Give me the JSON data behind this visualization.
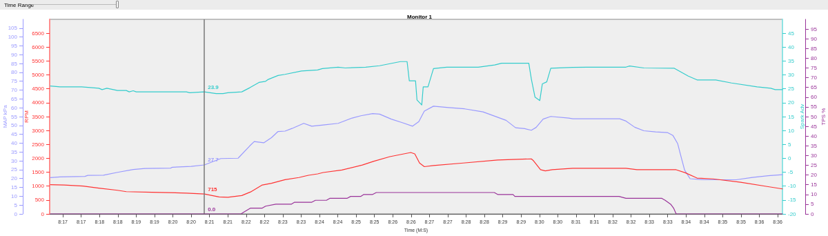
{
  "chart_data": [
    {
      "type": "line",
      "title": "Monitor 1",
      "xlabel": "Time (M:S)",
      "ylabel": "RPM",
      "y2label": "Spark Adv",
      "y3label": "MAP kPa",
      "annotations": [
        "Time Range"
      ],
      "xlim": [
        496.64,
        516.63
      ],
      "xticks": [
        {
          "value": 497,
          "label": "8:17"
        },
        {
          "value": 497.5,
          "label": "8:17"
        },
        {
          "value": 498,
          "label": "8:18"
        },
        {
          "value": 498.5,
          "label": "8:18"
        },
        {
          "value": 499,
          "label": "8:19"
        },
        {
          "value": 499.5,
          "label": "8:19"
        },
        {
          "value": 500,
          "label": "8:20"
        },
        {
          "value": 500.5,
          "label": "8:20"
        },
        {
          "value": 501,
          "label": "8:21"
        },
        {
          "value": 501.5,
          "label": "8:21"
        },
        {
          "value": 502,
          "label": "8:22"
        },
        {
          "value": 502.5,
          "label": "8:22"
        },
        {
          "value": 503,
          "label": "8:23"
        },
        {
          "value": 503.5,
          "label": "8:23"
        },
        {
          "value": 504,
          "label": "8:24"
        },
        {
          "value": 504.5,
          "label": "8:24"
        },
        {
          "value": 505,
          "label": "8:25"
        },
        {
          "value": 505.5,
          "label": "8:25"
        },
        {
          "value": 506,
          "label": "8:26"
        },
        {
          "value": 506.5,
          "label": "8:26"
        },
        {
          "value": 507,
          "label": "8:27"
        },
        {
          "value": 507.5,
          "label": "8:27"
        },
        {
          "value": 508,
          "label": "8:28"
        },
        {
          "value": 508.5,
          "label": "8:28"
        },
        {
          "value": 509,
          "label": "8:29"
        },
        {
          "value": 509.5,
          "label": "8:29"
        },
        {
          "value": 510,
          "label": "8:30"
        },
        {
          "value": 510.5,
          "label": "8:30"
        },
        {
          "value": 511,
          "label": "8:31"
        },
        {
          "value": 511.5,
          "label": "8:31"
        },
        {
          "value": 512,
          "label": "8:32"
        },
        {
          "value": 512.5,
          "label": "8:32"
        },
        {
          "value": 513,
          "label": "8:33"
        },
        {
          "value": 513.5,
          "label": "8:33"
        },
        {
          "value": 514,
          "label": "8:34"
        },
        {
          "value": 514.5,
          "label": "8:34"
        },
        {
          "value": 515,
          "label": "8:35"
        },
        {
          "value": 515.5,
          "label": "8:35"
        },
        {
          "value": 516,
          "label": "8:36"
        },
        {
          "value": 516.5,
          "label": "8:36"
        }
      ],
      "ylim": [
        0,
        7000
      ],
      "yticks": [
        0,
        500,
        1000,
        1500,
        2000,
        2500,
        3000,
        3500,
        4000,
        4500,
        5000,
        5500,
        6000,
        6500
      ],
      "y2lim": [
        -20,
        50
      ],
      "y2ticks": [
        -20,
        -15,
        -10,
        -5,
        0,
        5,
        10,
        15,
        20,
        25,
        30,
        35,
        40,
        45
      ],
      "y3lim": [
        0,
        110
      ],
      "y3ticks": [
        0,
        5,
        10,
        15,
        20,
        25,
        30,
        35,
        40,
        45,
        50,
        55,
        60,
        65,
        70,
        75,
        80,
        85,
        90,
        95,
        100,
        105
      ],
      "ref_lines": [
        {
          "axis": "x",
          "value": 500.86,
          "label": null,
          "color": "#777777"
        }
      ],
      "series": [
        {
          "axis": "y2",
          "color": "#33cccc",
          "x": [
            496.66,
            496.92,
            497.51,
            497.98,
            498.07,
            498.2,
            498.49,
            498.73,
            498.81,
            498.92,
            499.0,
            500.37,
            500.46,
            500.69,
            500.86,
            501.18,
            501.37,
            501.5,
            501.88,
            502.1,
            502.35,
            502.53,
            502.59,
            502.87,
            503.06,
            503.51,
            503.95,
            504.08,
            504.51,
            504.7,
            505.26,
            505.64,
            506.21,
            506.39,
            506.45,
            506.62,
            506.66,
            506.79,
            506.83,
            506.96,
            507.11,
            507.47,
            508.33,
            508.78,
            508.97,
            509.71,
            509.78,
            509.88,
            510.01,
            510.08,
            510.2,
            510.31,
            510.91,
            511.29,
            512.36,
            512.46,
            512.85,
            513.68,
            514.06,
            514.3,
            514.81,
            515.24,
            515.94,
            516.31,
            516.43,
            516.63
          ],
          "values": [
            26.0,
            25.7,
            25.7,
            25.2,
            24.7,
            25.2,
            24.4,
            24.4,
            23.9,
            24.3,
            23.9,
            23.9,
            23.6,
            23.8,
            23.9,
            23.3,
            23.3,
            23.6,
            23.9,
            25.4,
            27.3,
            27.7,
            28.3,
            29.8,
            30.2,
            31.4,
            31.8,
            32.3,
            32.8,
            32.5,
            32.8,
            33.3,
            34.8,
            34.8,
            27.9,
            27.9,
            21.0,
            19.2,
            25.7,
            25.7,
            32.3,
            32.8,
            32.8,
            33.6,
            34.2,
            34.2,
            28.5,
            22.0,
            20.8,
            26.8,
            27.5,
            32.4,
            32.7,
            32.8,
            32.8,
            33.2,
            32.5,
            32.4,
            29.6,
            28.2,
            28.2,
            27.1,
            25.7,
            25.2,
            24.7,
            24.7
          ],
          "value_labels": [
            null,
            null,
            null,
            null,
            null,
            null,
            null,
            null,
            null,
            null,
            null,
            null,
            null,
            null,
            "23.9",
            null,
            null,
            null,
            null,
            null,
            null,
            null,
            null,
            null,
            null,
            null,
            null,
            null,
            null,
            null,
            null,
            null,
            null,
            null,
            null,
            null,
            null,
            null,
            null,
            null,
            null,
            null,
            null,
            null,
            null,
            null,
            null,
            null,
            null,
            null,
            null,
            null,
            null,
            null,
            null,
            null,
            null,
            null,
            null,
            null,
            null,
            null,
            null,
            null,
            null,
            null
          ]
        },
        {
          "axis": "y3",
          "color": "#9999ff",
          "x": [
            496.66,
            496.92,
            497.6,
            497.68,
            498.11,
            498.49,
            498.92,
            499.24,
            499.94,
            499.99,
            500.5,
            500.86,
            501.31,
            501.78,
            502.1,
            502.22,
            502.48,
            502.69,
            502.87,
            503.06,
            503.25,
            503.57,
            503.79,
            504.1,
            504.51,
            504.89,
            505.13,
            505.45,
            505.64,
            505.96,
            506.26,
            506.54,
            506.71,
            506.86,
            507.11,
            507.52,
            507.96,
            508.46,
            509.09,
            509.35,
            509.6,
            509.78,
            509.91,
            510.1,
            510.31,
            510.8,
            510.91,
            512.19,
            512.36,
            512.6,
            512.85,
            513.17,
            513.49,
            513.64,
            513.77,
            513.86,
            513.96,
            514.11,
            514.49,
            515.37,
            515.81,
            516.24,
            516.63
          ],
          "values": [
            20.5,
            20.9,
            21.2,
            21.8,
            21.9,
            23.5,
            25.1,
            25.7,
            25.9,
            26.4,
            26.9,
            27.7,
            31.3,
            31.5,
            38.5,
            40.9,
            40.2,
            43.1,
            46.6,
            46.8,
            48.3,
            51.2,
            49.6,
            50.3,
            51.2,
            54.2,
            55.5,
            56.7,
            56.4,
            53.6,
            51.6,
            49.6,
            52.2,
            58.1,
            60.9,
            60.1,
            59.4,
            57.7,
            52.9,
            48.7,
            48.2,
            47.3,
            48.9,
            53.6,
            55.1,
            54.2,
            53.8,
            53.8,
            52.5,
            49.0,
            47.0,
            46.4,
            46.0,
            44.4,
            39.8,
            32.6,
            24.8,
            19.9,
            19.3,
            19.3,
            20.6,
            21.6,
            22.2
          ],
          "value_labels": [
            null,
            null,
            null,
            null,
            null,
            null,
            null,
            null,
            null,
            null,
            null,
            "27.7",
            null,
            null,
            null,
            null,
            null,
            null,
            null,
            null,
            null,
            null,
            null,
            null,
            null,
            null,
            null,
            null,
            null,
            null,
            null,
            null,
            null,
            null,
            null,
            null,
            null,
            null,
            null,
            null,
            null,
            null,
            null,
            null,
            null,
            null,
            null,
            null,
            null,
            null,
            null,
            null,
            null,
            null,
            null,
            null,
            null,
            null,
            null,
            null,
            null,
            null,
            null
          ]
        },
        {
          "color": "#ff3333",
          "x": [
            496.66,
            497.04,
            497.55,
            497.98,
            498.49,
            498.73,
            499.43,
            500.37,
            500.86,
            501.26,
            501.5,
            501.88,
            502.12,
            502.44,
            502.69,
            503.06,
            503.44,
            503.7,
            503.95,
            504.1,
            504.61,
            505.17,
            505.47,
            505.92,
            506.3,
            506.49,
            506.6,
            506.73,
            506.86,
            507.11,
            507.92,
            508.86,
            509.78,
            509.84,
            510.03,
            510.16,
            510.35,
            510.91,
            512.36,
            512.66,
            513.73,
            513.98,
            514.3,
            514.74,
            515.49,
            516.24,
            516.63
          ],
          "values": [
            1050,
            1040,
            1000,
            930,
            850,
            800,
            780,
            750,
            715,
            610,
            600,
            660,
            790,
            1040,
            1100,
            1230,
            1310,
            1390,
            1440,
            1490,
            1580,
            1760,
            1890,
            2060,
            2160,
            2210,
            2160,
            1830,
            1700,
            1740,
            1830,
            1940,
            1980,
            1910,
            1590,
            1550,
            1590,
            1640,
            1640,
            1590,
            1590,
            1480,
            1290,
            1260,
            1140,
            980,
            900
          ],
          "value_labels": [
            null,
            null,
            null,
            null,
            null,
            null,
            null,
            null,
            "715",
            null,
            null,
            null,
            null,
            null,
            null,
            null,
            null,
            null,
            null,
            null,
            null,
            null,
            null,
            null,
            null,
            null,
            null,
            null,
            null,
            null,
            null,
            null,
            null,
            null,
            null,
            null,
            null,
            null,
            null,
            null,
            null,
            null,
            null,
            null,
            null,
            null,
            null
          ]
        }
      ]
    },
    {
      "type": "line",
      "ylabel": "TPS %",
      "tick_labels": "y",
      "xlim": [
        496.64,
        516.63
      ],
      "ylim": [
        0,
        100
      ],
      "yticks": [
        0,
        5,
        10,
        15,
        20,
        25,
        30,
        35,
        40,
        45,
        50,
        55,
        60,
        65,
        70,
        75,
        80,
        85,
        90,
        95
      ],
      "series": [
        {
          "color": "#993399",
          "x": [
            496.66,
            500.86,
            501.86,
            501.94,
            502.12,
            502.44,
            502.53,
            502.81,
            503.23,
            503.32,
            503.79,
            503.89,
            504.19,
            504.28,
            504.75,
            504.85,
            505.13,
            505.21,
            505.45,
            505.55,
            508.77,
            508.86,
            509.28,
            509.33,
            512.17,
            512.36,
            513.34,
            513.43,
            513.58,
            513.66,
            513.73,
            516.63
          ],
          "values": [
            0,
            0,
            0,
            1,
            3,
            3,
            4,
            5,
            5,
            6,
            6,
            7,
            7,
            8,
            8,
            9,
            9,
            10,
            10,
            11,
            11,
            10,
            10,
            9,
            9,
            8,
            8,
            7,
            5,
            3,
            0,
            0
          ],
          "value_labels": [
            null,
            "0.0",
            null,
            null,
            null,
            null,
            null,
            null,
            null,
            null,
            null,
            null,
            null,
            null,
            null,
            null,
            null,
            null,
            null,
            null,
            null,
            null,
            null,
            null,
            null,
            null,
            null,
            null,
            null,
            null,
            null,
            null
          ]
        }
      ]
    }
  ]
}
